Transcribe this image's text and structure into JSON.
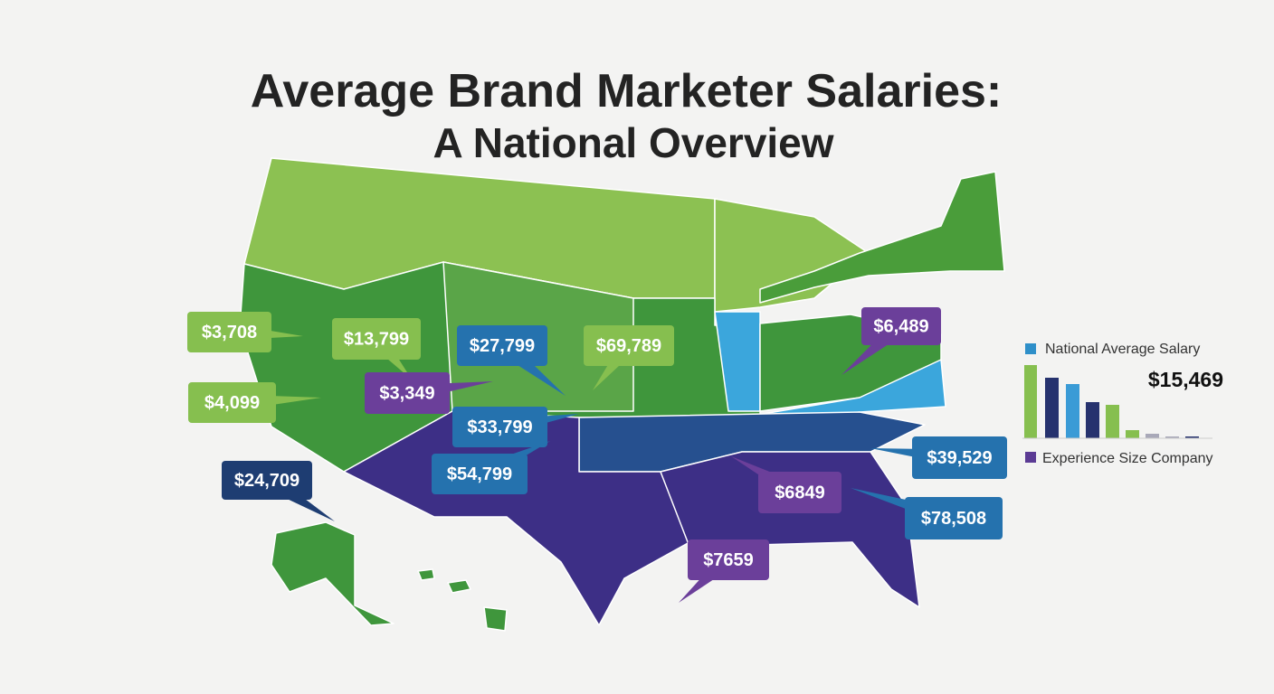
{
  "title": {
    "line1": "Average Brand Marketer Salaries:",
    "line2": "A National Overview"
  },
  "callouts": [
    {
      "label": "$3,708",
      "color": "#86bf4f"
    },
    {
      "label": "$13,799",
      "color": "#86bf4f"
    },
    {
      "label": "$27,799",
      "color": "#2572ae"
    },
    {
      "label": "$69,789",
      "color": "#86bf4f"
    },
    {
      "label": "$4,099",
      "color": "#86bf4f"
    },
    {
      "label": "$3,349",
      "color": "#6b3f9a"
    },
    {
      "label": "$33,799",
      "color": "#2572ae"
    },
    {
      "label": "$24,709",
      "color": "#1e3d72"
    },
    {
      "label": "$54,799",
      "color": "#2572ae"
    },
    {
      "label": "$6,489",
      "color": "#6b3f9a"
    },
    {
      "label": "$39,529",
      "color": "#2572ae"
    },
    {
      "label": "$6849",
      "color": "#6b3f9a"
    },
    {
      "label": "$78,508",
      "color": "#2572ae"
    },
    {
      "label": "$7659",
      "color": "#6b3f9a"
    }
  ],
  "legend": {
    "series_label": "National Average Salary",
    "value": "$15,469",
    "group_label": "Experience Size Company"
  }
}
